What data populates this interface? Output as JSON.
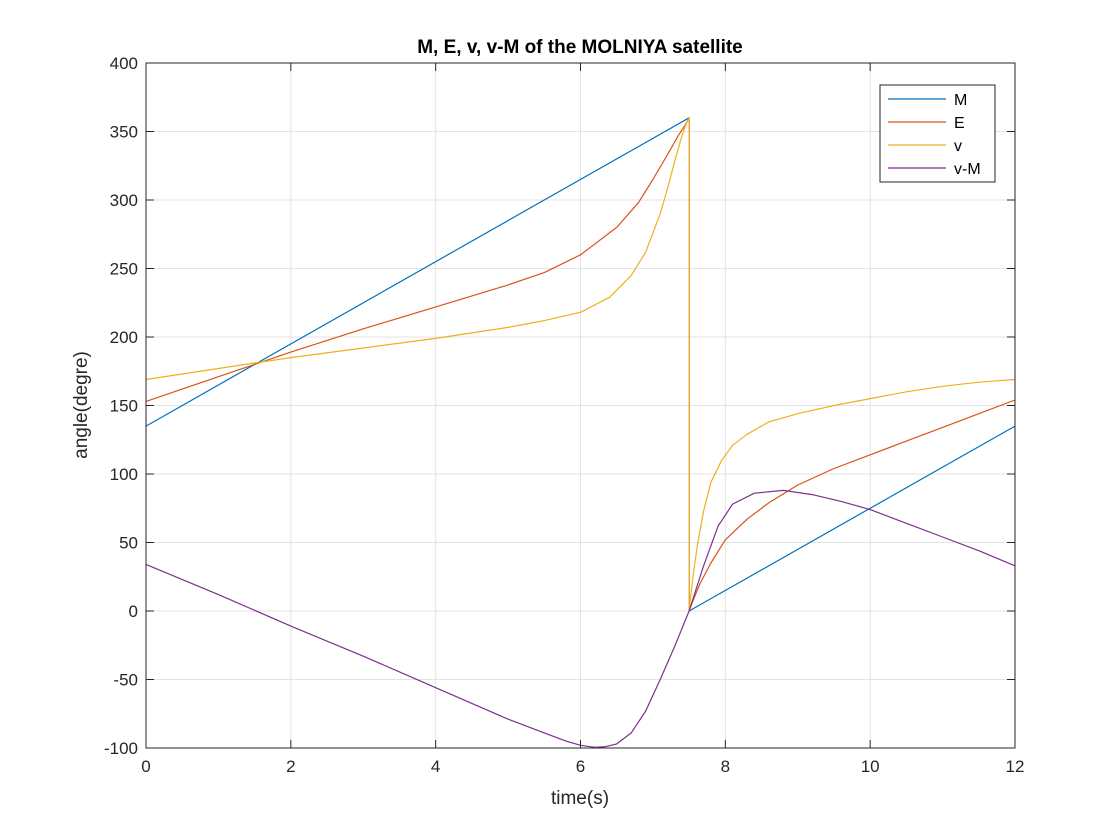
{
  "chart_data": {
    "type": "line",
    "title": "M, E, v, v-M of the MOLNIYA satellite",
    "xlabel": "time(s)",
    "ylabel": "angle(degre)",
    "xlim": [
      0,
      12
    ],
    "ylim": [
      -100,
      400
    ],
    "xticks": [
      0,
      2,
      4,
      6,
      8,
      10,
      12
    ],
    "xtick_labels": [
      "0",
      "2",
      "4",
      "6",
      "8",
      "10",
      "12"
    ],
    "yticks": [
      -100,
      -50,
      0,
      50,
      100,
      150,
      200,
      250,
      300,
      350,
      400
    ],
    "ytick_labels": [
      "-100",
      "-50",
      "0",
      "50",
      "100",
      "150",
      "200",
      "250",
      "300",
      "350",
      "400"
    ],
    "grid": true,
    "legend": {
      "position": "top-right"
    },
    "series": [
      {
        "name": "M",
        "color": "#0072BD",
        "x": [
          0,
          7.5,
          7.5,
          12
        ],
        "y": [
          135,
          360,
          0,
          135
        ]
      },
      {
        "name": "E",
        "color": "#D95319",
        "x": [
          0,
          0.5,
          1,
          1.5,
          2,
          3,
          4,
          5,
          5.5,
          6,
          6.5,
          6.8,
          7,
          7.2,
          7.35,
          7.45,
          7.5,
          7.5,
          7.55,
          7.65,
          7.8,
          8,
          8.3,
          8.6,
          9,
          9.5,
          10,
          10.5,
          11,
          11.5,
          12
        ],
        "y": [
          153,
          162,
          171,
          180,
          189,
          206,
          222,
          238,
          247,
          260,
          280,
          298,
          315,
          333,
          347,
          355,
          360,
          0,
          7,
          20,
          35,
          52,
          67,
          79,
          92,
          104,
          114,
          124,
          134,
          144,
          154
        ]
      },
      {
        "name": "v",
        "color": "#EDB120",
        "x": [
          0,
          0.5,
          1,
          1.5,
          2,
          3,
          4,
          5,
          5.5,
          6,
          6.4,
          6.7,
          6.9,
          7.1,
          7.2,
          7.3,
          7.38,
          7.44,
          7.48,
          7.5,
          7.5,
          7.52,
          7.56,
          7.62,
          7.7,
          7.8,
          7.95,
          8.1,
          8.3,
          8.6,
          9,
          9.5,
          10,
          10.5,
          11,
          11.5,
          12
        ],
        "y": [
          169,
          173,
          177,
          181,
          185,
          192,
          199,
          207,
          212,
          218,
          229,
          245,
          262,
          290,
          308,
          328,
          343,
          353,
          358,
          360,
          0,
          10,
          28,
          50,
          73,
          94,
          110,
          121,
          129,
          138,
          144,
          150,
          155,
          160,
          164,
          167,
          169
        ]
      },
      {
        "name": "v-M",
        "color": "#7E2F8E",
        "x": [
          0,
          1,
          2,
          3,
          4,
          5,
          5.5,
          5.8,
          6,
          6.2,
          6.35,
          6.5,
          6.7,
          6.9,
          7.1,
          7.3,
          7.5,
          7.7,
          7.9,
          8.1,
          8.4,
          8.8,
          9.2,
          9.6,
          10,
          10.5,
          11,
          11.5,
          12
        ],
        "y": [
          34,
          12,
          -11,
          -33,
          -56,
          -79,
          -89,
          -95,
          -98,
          -99.5,
          -99,
          -97,
          -89,
          -73,
          -50,
          -26,
          0,
          33,
          62,
          78,
          86,
          88,
          85,
          80,
          74,
          64,
          54,
          44,
          33
        ]
      }
    ]
  }
}
